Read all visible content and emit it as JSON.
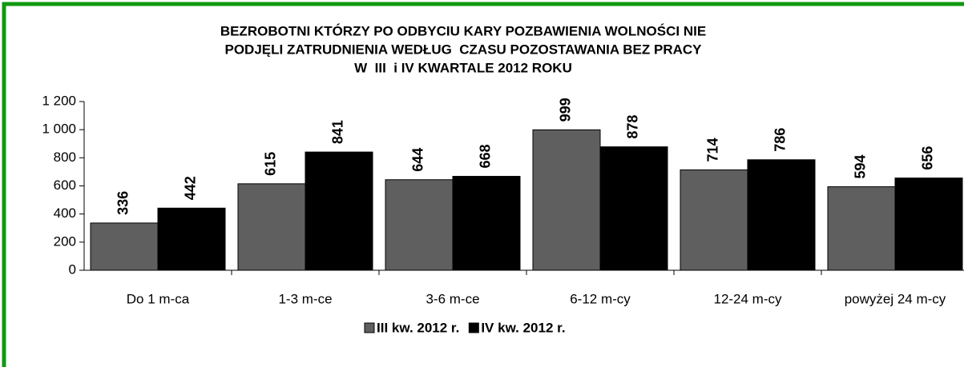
{
  "chart_data": {
    "type": "bar",
    "title": [
      "BEZROBOTNI KTÓRZY PO ODBYCIU KARY POZBAWIENIA WOLNOŚCI NIE",
      "PODJĘLI ZATRUDNIENIA WEDŁUG  CZASU POZOSTAWANIA BEZ PRACY",
      "W  III  i IV KWARTALE 2012 ROKU"
    ],
    "categories": [
      "Do 1 m-ca",
      "1-3 m-ce",
      "3-6 m-ce",
      "6-12 m-cy",
      "12-24 m-cy",
      "powyżej 24 m-cy"
    ],
    "series": [
      {
        "name": "III kw. 2012 r.",
        "color": "#5f5f5f",
        "values": [
          336,
          615,
          644,
          999,
          714,
          594
        ]
      },
      {
        "name": "IV kw. 2012 r.",
        "color": "#000000",
        "values": [
          442,
          841,
          668,
          878,
          786,
          656
        ]
      }
    ],
    "ylim": [
      0,
      1200
    ],
    "yticks": [
      0,
      200,
      400,
      600,
      800,
      {
        "value": 1000,
        "label": "1 000"
      },
      {
        "value": 1200,
        "label": "1 200"
      }
    ],
    "legend": "bottom"
  }
}
